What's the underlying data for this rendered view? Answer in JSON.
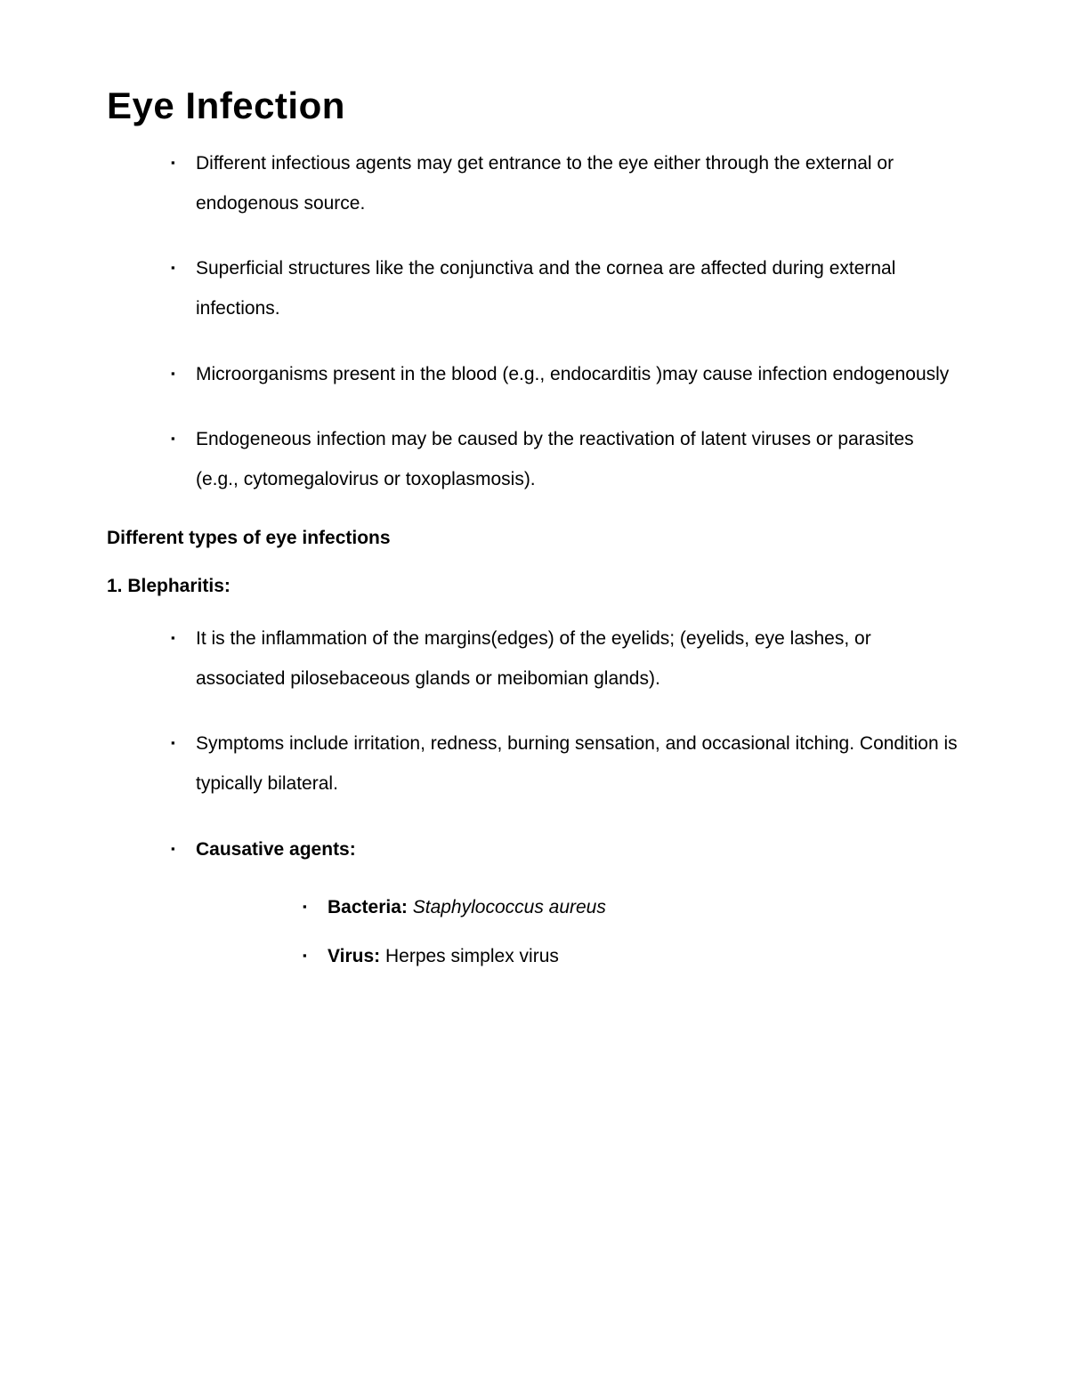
{
  "title": "Eye Infection",
  "intro": {
    "items": [
      "Different infectious agents may get entrance to the eye either through the external or endogenous source.",
      "Superficial structures like the conjunctiva and the cornea are affected during external infections.",
      "Microorganisms present in the blood (e.g., endocarditis )may cause infection endogenously",
      "Endogeneous infection may be caused by the reactivation of latent viruses or parasites (e.g., cytomegalovirus or toxoplasmosis)."
    ]
  },
  "section_heading": "Different types of eye infections",
  "blepharitis": {
    "heading": "1. Blepharitis:",
    "item1": "It is the inflammation of the margins(edges) of the eyelids; (eyelids, eye lashes, or associated pilosebaceous glands or meibomian glands).",
    "item2": "Symptoms include irritation, redness, burning sensation, and occasional itching. Condition is typically bilateral.",
    "causative_label": "Causative agents:",
    "agents": {
      "bacteria_label": "Bacteria:",
      "bacteria_value": "Staphylococcus aureus",
      "virus_label": "Virus:",
      "virus_value": "Herpes simplex virus"
    }
  },
  "styling": {
    "background_color": "#ffffff",
    "text_color": "#000000",
    "title_fontsize": 42,
    "body_fontsize": 21,
    "line_height": 2.15,
    "bullet_char": "▪",
    "font_family": "Verdana"
  }
}
